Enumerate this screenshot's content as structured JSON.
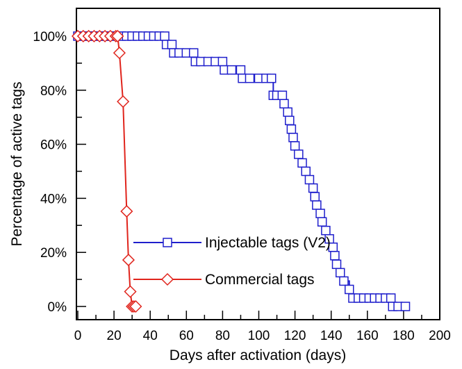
{
  "chart_data": {
    "type": "line",
    "xlabel": "Days after activation (days)",
    "ylabel": "Percentage of active tags",
    "xlim": [
      0,
      200
    ],
    "ylim": [
      0,
      100
    ],
    "x_ticks": [
      "0",
      "20",
      "40",
      "60",
      "80",
      "100",
      "120",
      "140",
      "160",
      "180",
      "200"
    ],
    "y_ticks": [
      "0%",
      "20%",
      "40%",
      "60%",
      "80%",
      "100%"
    ],
    "grid": false,
    "legend_position": "center-left",
    "series": [
      {
        "name": "Injectable tags (V2)",
        "color": "#1f1fcc",
        "marker": "square",
        "step": true,
        "points": [
          [
            0,
            100
          ],
          [
            3,
            100
          ],
          [
            6,
            100
          ],
          [
            9,
            100
          ],
          [
            12,
            100
          ],
          [
            15,
            100
          ],
          [
            18,
            100
          ],
          [
            21,
            100
          ],
          [
            24,
            100
          ],
          [
            27,
            100
          ],
          [
            30,
            100
          ],
          [
            33,
            100
          ],
          [
            36,
            100
          ],
          [
            39,
            100
          ],
          [
            42,
            100
          ],
          [
            45,
            100
          ],
          [
            48,
            100
          ],
          [
            49,
            96.9
          ],
          [
            52,
            96.9
          ],
          [
            53,
            93.8
          ],
          [
            56,
            93.8
          ],
          [
            60,
            93.8
          ],
          [
            64,
            93.8
          ],
          [
            65,
            90.6
          ],
          [
            68,
            90.6
          ],
          [
            72,
            90.6
          ],
          [
            76,
            90.6
          ],
          [
            80,
            90.6
          ],
          [
            81,
            87.5
          ],
          [
            85,
            87.5
          ],
          [
            90,
            87.5
          ],
          [
            91,
            84.4
          ],
          [
            95,
            84.4
          ],
          [
            100,
            84.4
          ],
          [
            104,
            84.4
          ],
          [
            107,
            84.4
          ],
          [
            108,
            78.1
          ],
          [
            110,
            78.1
          ],
          [
            113,
            78.1
          ],
          [
            114,
            75
          ],
          [
            116,
            71.9
          ],
          [
            117,
            68.8
          ],
          [
            118,
            65.6
          ],
          [
            119,
            62.5
          ],
          [
            120,
            59.4
          ],
          [
            122,
            56.3
          ],
          [
            124,
            53.1
          ],
          [
            126,
            50
          ],
          [
            128,
            46.9
          ],
          [
            130,
            43.8
          ],
          [
            131,
            40.6
          ],
          [
            132,
            37.5
          ],
          [
            134,
            34.4
          ],
          [
            135,
            31.3
          ],
          [
            137,
            28.1
          ],
          [
            139,
            25
          ],
          [
            141,
            21.9
          ],
          [
            142,
            18.8
          ],
          [
            143,
            15.6
          ],
          [
            145,
            12.5
          ],
          [
            147,
            9.4
          ],
          [
            150,
            6.3
          ],
          [
            152,
            3.1
          ],
          [
            155,
            3.1
          ],
          [
            158,
            3.1
          ],
          [
            161,
            3.1
          ],
          [
            164,
            3.1
          ],
          [
            167,
            3.1
          ],
          [
            170,
            3.1
          ],
          [
            173,
            3.1
          ],
          [
            174,
            0
          ],
          [
            177,
            0
          ],
          [
            181,
            0
          ]
        ]
      },
      {
        "name": "Commercial tags",
        "color": "#e0241c",
        "marker": "diamond",
        "step": false,
        "points": [
          [
            0,
            100
          ],
          [
            3,
            100
          ],
          [
            6,
            100
          ],
          [
            9,
            100
          ],
          [
            12,
            100
          ],
          [
            15,
            100
          ],
          [
            18,
            100
          ],
          [
            21,
            100
          ],
          [
            22,
            100
          ],
          [
            23,
            93.8
          ],
          [
            25,
            75.8
          ],
          [
            27,
            35.2
          ],
          [
            28,
            17.2
          ],
          [
            29,
            5.5
          ],
          [
            30,
            0
          ],
          [
            31,
            0
          ],
          [
            32,
            0
          ]
        ]
      }
    ]
  }
}
